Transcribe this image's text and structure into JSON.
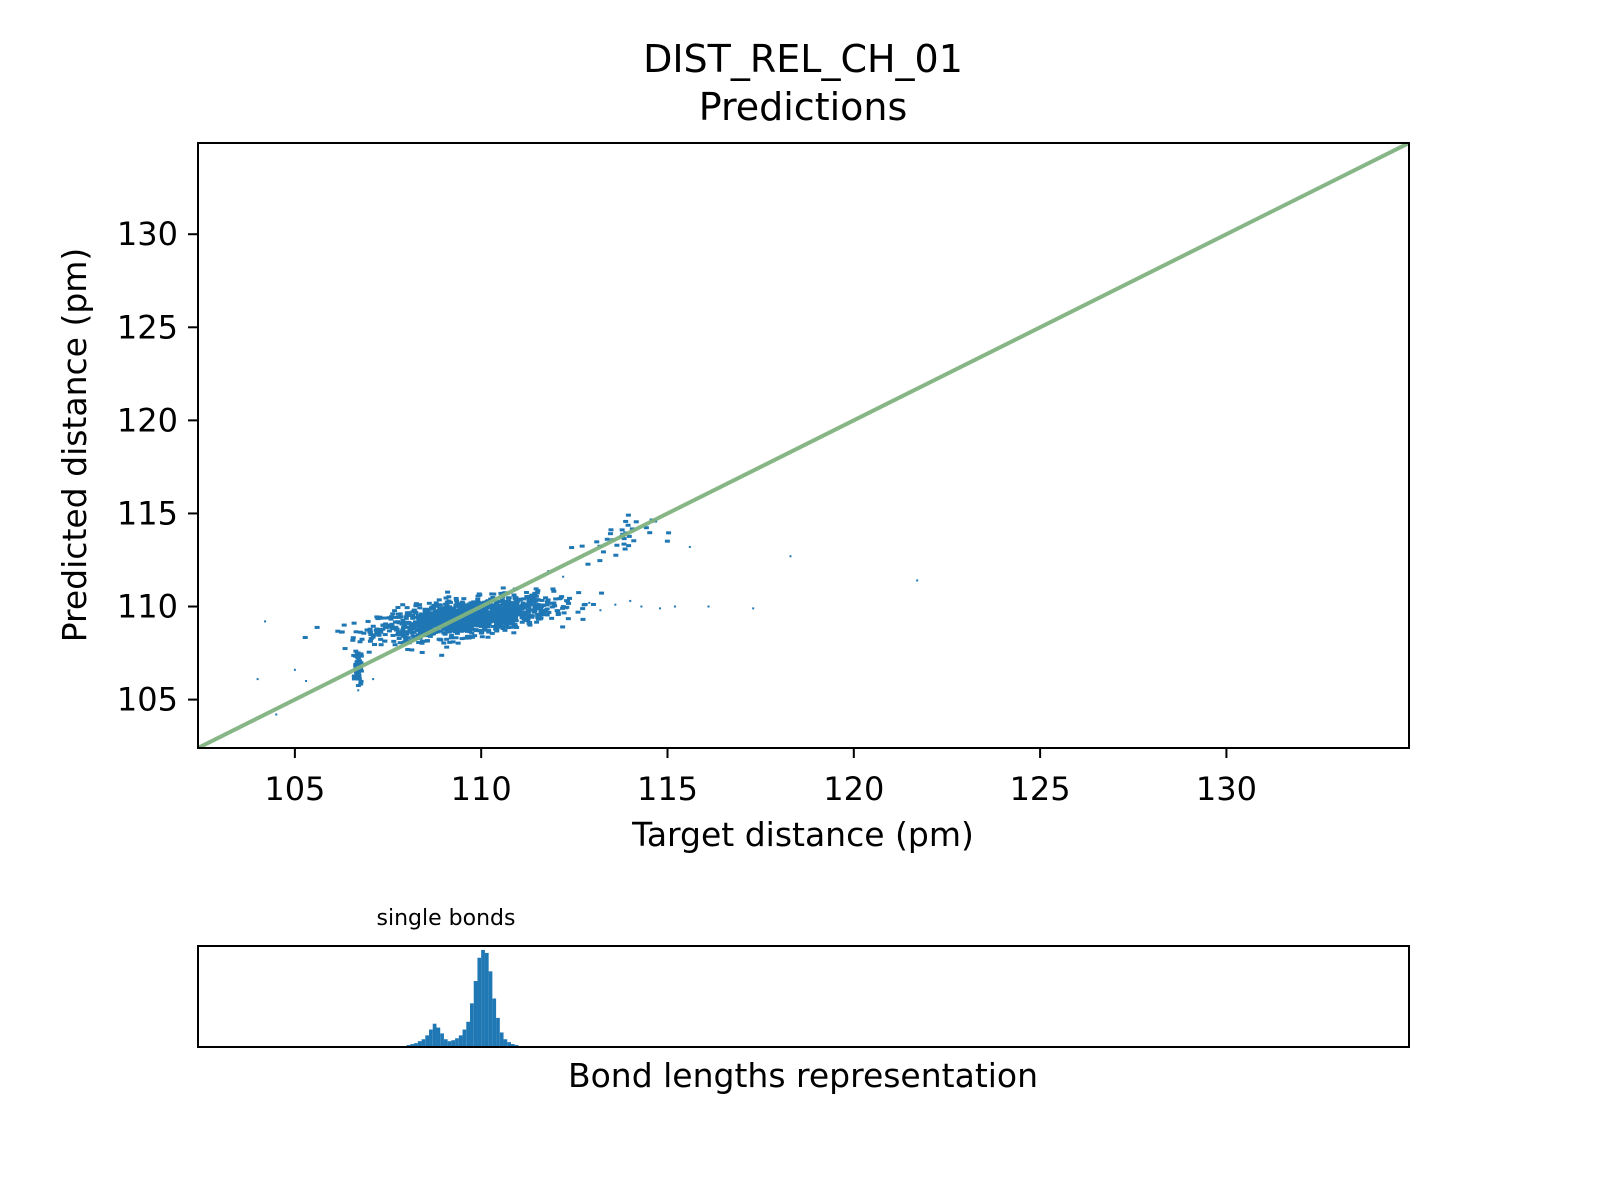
{
  "chart_data": [
    {
      "type": "scatter",
      "title": "DIST_REL_CH_01",
      "subtitle": "Predictions",
      "xlabel": "Target distance (pm)",
      "ylabel": "Predicted distance (pm)",
      "xlim": [
        102.4,
        134.9
      ],
      "ylim": [
        102.4,
        134.9
      ],
      "xticks": [
        "105",
        "110",
        "115",
        "120",
        "125",
        "130"
      ],
      "yticks": [
        "105",
        "110",
        "115",
        "120",
        "125",
        "130"
      ],
      "grid": false,
      "reference_line": {
        "x": [
          102.4,
          134.9
        ],
        "y": [
          102.4,
          134.9
        ],
        "color": "#7fb27f"
      },
      "marker_color": "#1f77b4",
      "clusters": [
        {
          "x_center": 109.6,
          "y_center": 109.4,
          "x_spread": 1.15,
          "y_spread": 0.55,
          "count": 1400,
          "correlation": 0.55
        },
        {
          "x_center": 106.7,
          "y_center": 106.8,
          "x_spread": 0.04,
          "y_spread": 0.45,
          "count": 90,
          "correlation": 0.0
        },
        {
          "x_center": 113.6,
          "y_center": 113.6,
          "x_spread": 0.5,
          "y_spread": 0.6,
          "count": 35,
          "correlation": 0.3
        }
      ],
      "outliers": [
        {
          "x": 104.0,
          "y": 106.1
        },
        {
          "x": 104.5,
          "y": 104.2
        },
        {
          "x": 104.2,
          "y": 109.2
        },
        {
          "x": 105.0,
          "y": 106.6
        },
        {
          "x": 105.3,
          "y": 106.0
        },
        {
          "x": 106.7,
          "y": 105.5
        },
        {
          "x": 107.1,
          "y": 106.1
        },
        {
          "x": 112.3,
          "y": 109.9
        },
        {
          "x": 112.6,
          "y": 109.7
        },
        {
          "x": 112.9,
          "y": 110.2
        },
        {
          "x": 113.2,
          "y": 109.8
        },
        {
          "x": 113.6,
          "y": 110.1
        },
        {
          "x": 114.0,
          "y": 110.3
        },
        {
          "x": 114.3,
          "y": 110.0
        },
        {
          "x": 114.8,
          "y": 109.9
        },
        {
          "x": 115.2,
          "y": 110.0
        },
        {
          "x": 116.1,
          "y": 110.0
        },
        {
          "x": 117.3,
          "y": 109.9
        },
        {
          "x": 118.3,
          "y": 112.7
        },
        {
          "x": 121.7,
          "y": 111.4
        },
        {
          "x": 112.2,
          "y": 111.6
        },
        {
          "x": 115.6,
          "y": 113.2
        },
        {
          "x": 111.8,
          "y": 111.9
        }
      ]
    },
    {
      "type": "bar",
      "title": "single bonds",
      "xlabel": "Bond lengths representation",
      "ylabel": "",
      "xlim": [
        102.4,
        134.9
      ],
      "grid": false,
      "color": "#1f77b4",
      "bin_width": 0.1,
      "x": [
        107.9,
        108.0,
        108.1,
        108.2,
        108.3,
        108.4,
        108.5,
        108.6,
        108.7,
        108.8,
        108.9,
        109.0,
        109.1,
        109.2,
        109.3,
        109.4,
        109.5,
        109.6,
        109.7,
        109.8,
        109.9,
        110.0,
        110.1,
        110.2,
        110.3,
        110.4,
        110.5,
        110.6,
        110.7,
        110.8,
        110.9
      ],
      "values": [
        1,
        2,
        3,
        4,
        6,
        8,
        12,
        18,
        24,
        20,
        14,
        8,
        6,
        7,
        9,
        12,
        18,
        26,
        45,
        68,
        92,
        100,
        97,
        78,
        50,
        30,
        15,
        8,
        5,
        3,
        2
      ]
    }
  ]
}
